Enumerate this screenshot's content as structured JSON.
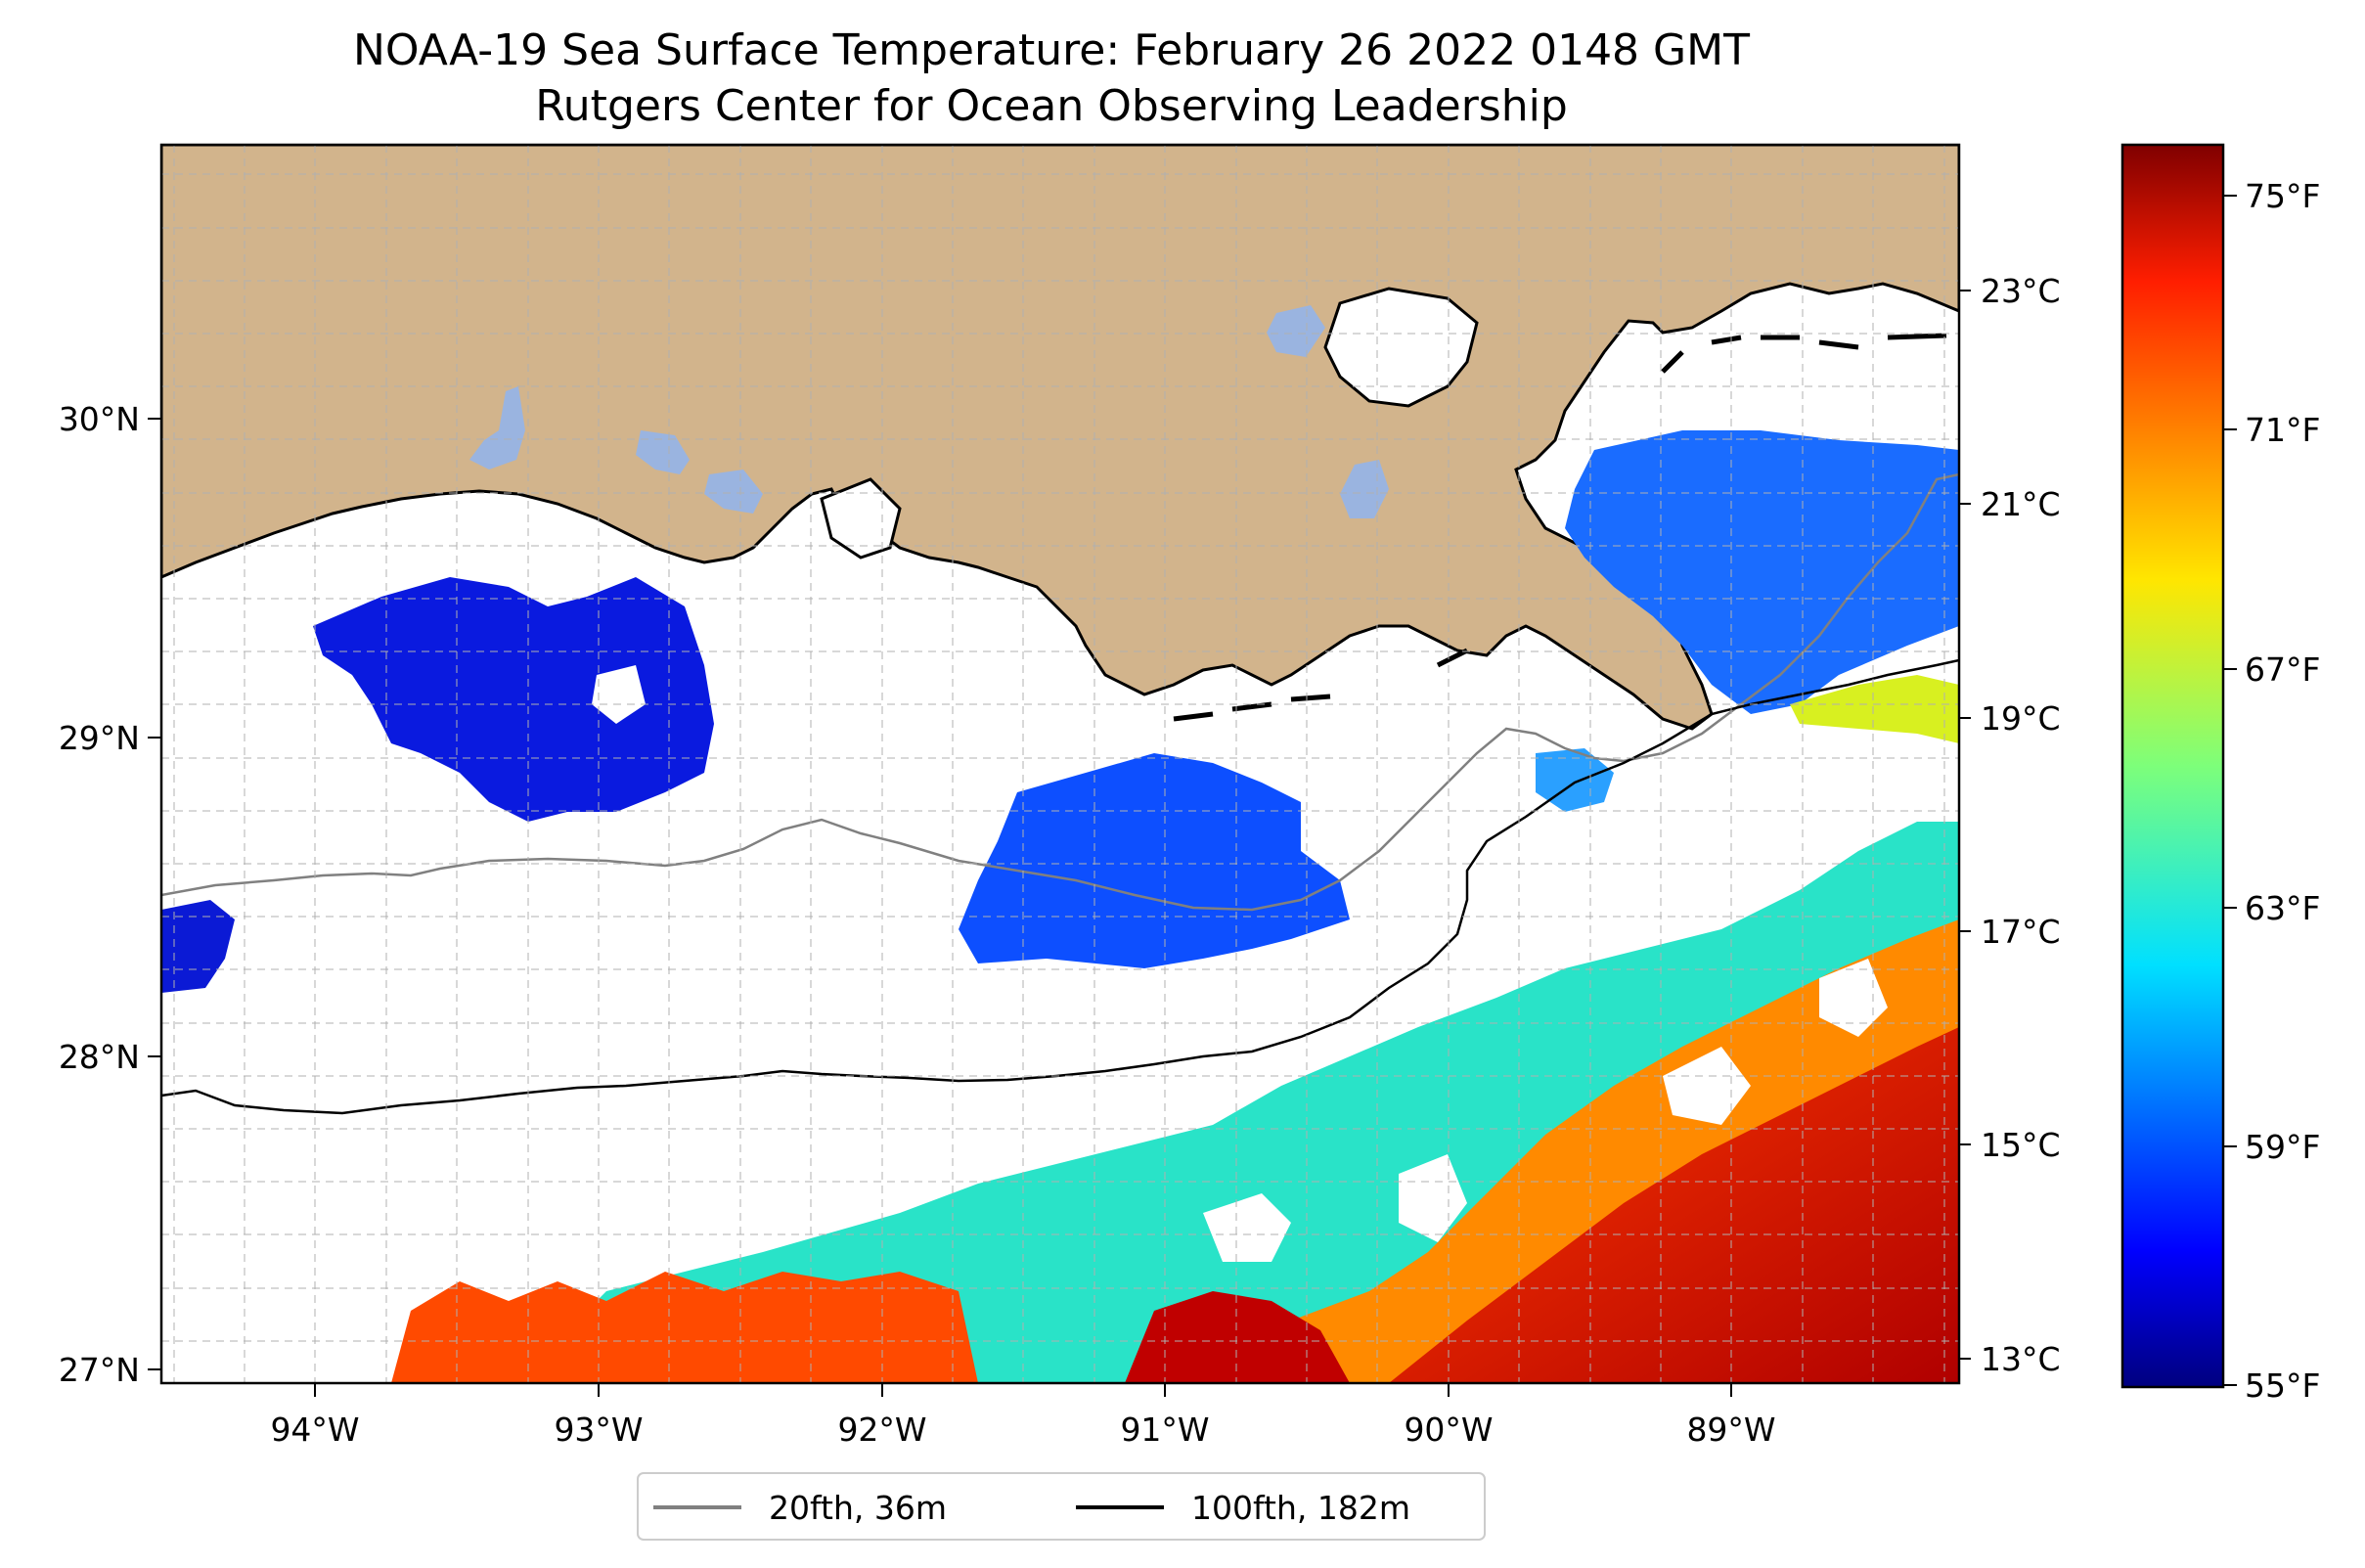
{
  "title_line1": "NOAA-19 Sea Surface Temperature: February 26 2022 0148 GMT",
  "title_line2": "Rutgers Center for Ocean Observing Leadership",
  "lon_ticks": [
    "94°W",
    "93°W",
    "92°W",
    "91°W",
    "90°W",
    "89°W"
  ],
  "lat_ticks": [
    "30°N",
    "29°N",
    "28°N",
    "27°N"
  ],
  "celsius_ticks": [
    "23°C",
    "21°C",
    "19°C",
    "17°C",
    "15°C",
    "13°C"
  ],
  "fahrenheit_ticks": [
    "75°F",
    "71°F",
    "67°F",
    "63°F",
    "59°F",
    "55°F"
  ],
  "legend": [
    {
      "label": "20fth, 36m",
      "color": "#808080"
    },
    {
      "label": "100fth, 182m",
      "color": "#000000"
    }
  ],
  "colors": {
    "land": "#d2b48c",
    "lake": "#9ab4e0",
    "no_data": "#ffffff",
    "colormap": "jet"
  },
  "colorbar_range_f": [
    55,
    76
  ]
}
